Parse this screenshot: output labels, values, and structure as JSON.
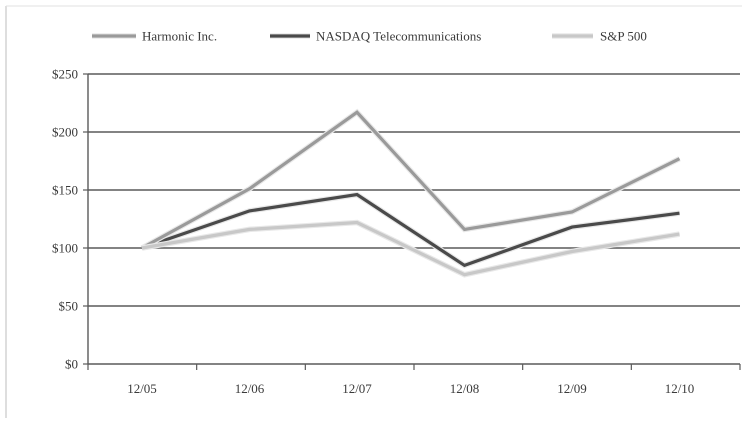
{
  "chart_data": {
    "type": "line",
    "title": "",
    "xlabel": "",
    "ylabel": "",
    "categories": [
      "12/05",
      "12/06",
      "12/07",
      "12/08",
      "12/09",
      "12/10"
    ],
    "y_tick_labels": [
      "$0",
      "$50",
      "$100",
      "$150",
      "$200",
      "$250"
    ],
    "ylim": [
      0,
      250
    ],
    "y_ticks": [
      0,
      50,
      100,
      150,
      200,
      250
    ],
    "grid": true,
    "legend_position": "top",
    "series": [
      {
        "name": "Harmonic Inc.",
        "color": "#9a9a9a",
        "values": [
          100,
          151,
          217,
          116,
          131,
          177
        ]
      },
      {
        "name": "NASDAQ Telecommunications",
        "color": "#4a4a4a",
        "values": [
          100,
          132,
          146,
          85,
          118,
          130
        ]
      },
      {
        "name": "S&P 500",
        "color": "#c8c8c8",
        "values": [
          100,
          116,
          122,
          77,
          97,
          112
        ]
      }
    ]
  }
}
